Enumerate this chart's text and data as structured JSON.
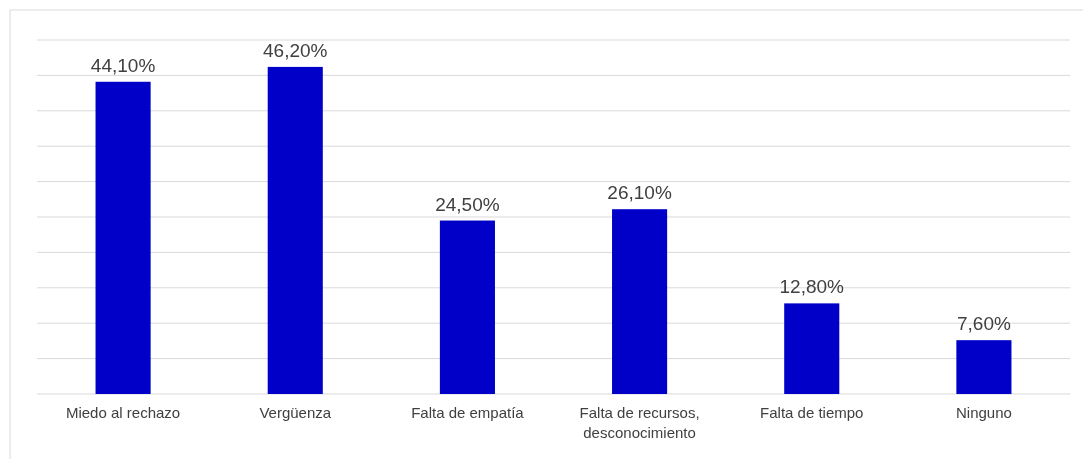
{
  "chart_data": {
    "type": "bar",
    "categories": [
      "Miedo al rechazo",
      "Vergüenza",
      "Falta de empatía",
      "Falta de recursos, desconocimiento",
      "Falta de tiempo",
      "Ninguno"
    ],
    "values": [
      44.1,
      46.2,
      24.5,
      26.1,
      12.8,
      7.6
    ],
    "value_labels": [
      "44,10%",
      "46,20%",
      "24,50%",
      "26,10%",
      "12,80%",
      "7,60%"
    ],
    "color": "#0000c8",
    "ylim": [
      0,
      50
    ],
    "yticks": [
      {
        "value": 0,
        "label": null
      },
      {
        "value": 5,
        "label": null
      },
      {
        "value": 10,
        "label": null
      },
      {
        "value": 15,
        "label": null
      },
      {
        "value": 20,
        "label": null
      },
      {
        "value": 25,
        "label": null
      },
      {
        "value": 30,
        "label": null
      },
      {
        "value": 35,
        "label": null
      },
      {
        "value": 40,
        "label": null
      },
      {
        "value": 45,
        "label": null
      },
      {
        "value": 50,
        "label": null
      }
    ],
    "grid": true,
    "tick_labels": "x"
  }
}
